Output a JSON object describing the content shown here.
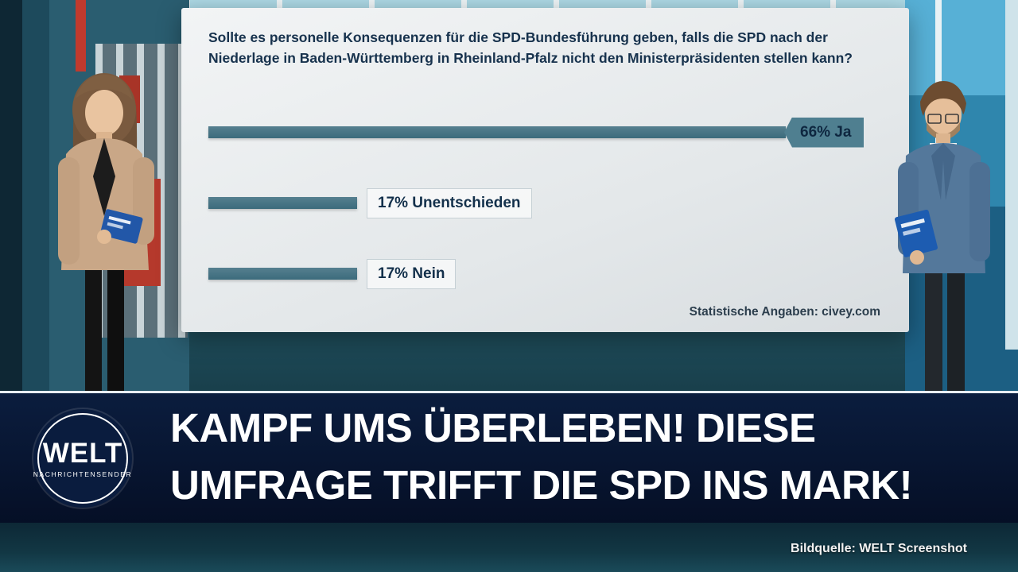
{
  "chart_data": {
    "type": "bar",
    "orientation": "horizontal",
    "title": "Sollte es personelle Konsequenzen für die SPD-Bundesführung geben, falls die SPD nach der Niederlage in Baden-Württemberg in Rheinland-Pfalz nicht den Ministerpräsidenten stellen kann?",
    "title_lines": [
      "Sollte es personelle Konsequenzen für die SPD-Bundesführung geben, falls die SPD nach der",
      "Niederlage in Baden-Württemberg in Rheinland-Pfalz nicht den Ministerpräsidenten stellen kann?"
    ],
    "categories": [
      "Ja",
      "Unentschieden",
      "Nein"
    ],
    "values": [
      66,
      17,
      17
    ],
    "labels": [
      "66% Ja",
      "17% Unentschieden",
      "17% Nein"
    ],
    "source": "Statistische Angaben: civey.com",
    "bar_color": "#3c6b7c",
    "label_color": "#13304b",
    "xlim": [
      0,
      100
    ],
    "grid": false,
    "legend": false
  },
  "banner": {
    "line1": "KAMPF UMS ÜBERLEBEN! DIESE",
    "line2": "UMFRAGE TRIFFT DIE SPD INS MARK!",
    "bg_color": "#050f26",
    "text_color": "#ffffff"
  },
  "logo": {
    "brand": "WELT",
    "subtitle": "NACHRICHTENSENDER"
  },
  "credit": {
    "text": "Bildquelle: WELT Screenshot"
  },
  "scene_colors": {
    "studio_teal": "#27606f",
    "accent_red": "#b5392c",
    "screen_bg": "#e4e8ea"
  }
}
